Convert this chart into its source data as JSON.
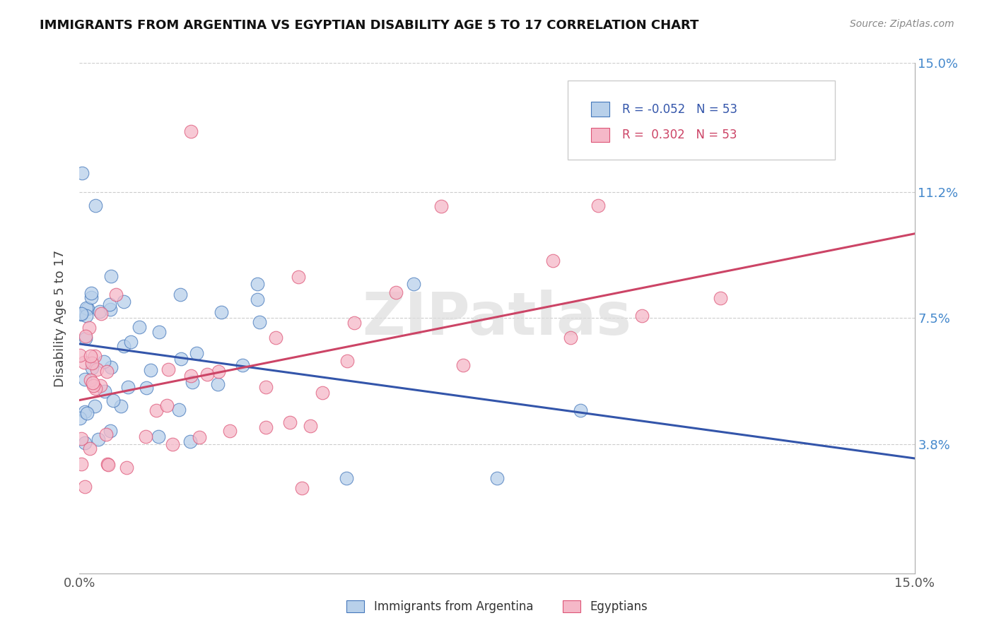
{
  "title": "IMMIGRANTS FROM ARGENTINA VS EGYPTIAN DISABILITY AGE 5 TO 17 CORRELATION CHART",
  "source": "Source: ZipAtlas.com",
  "ylabel": "Disability Age 5 to 17",
  "xlim": [
    0.0,
    0.15
  ],
  "ylim": [
    0.0,
    0.15
  ],
  "ytick_positions": [
    0.038,
    0.075,
    0.112,
    0.15
  ],
  "ytick_labels": [
    "3.8%",
    "7.5%",
    "11.2%",
    "15.0%"
  ],
  "color_blue": "#b8d0ea",
  "color_pink": "#f5b8c8",
  "color_blue_line": "#3355aa",
  "color_pink_line": "#cc4466",
  "color_blue_dark": "#4477bb",
  "color_pink_dark": "#dd5577",
  "watermark": "ZIPatlas",
  "legend_text1": "R = -0.052   N = 53",
  "legend_text2": "R =  0.302   N = 53",
  "legend_color1": "#3355aa",
  "legend_color2": "#cc4466",
  "bottom_legend1": "Immigrants from Argentina",
  "bottom_legend2": "Egyptians"
}
